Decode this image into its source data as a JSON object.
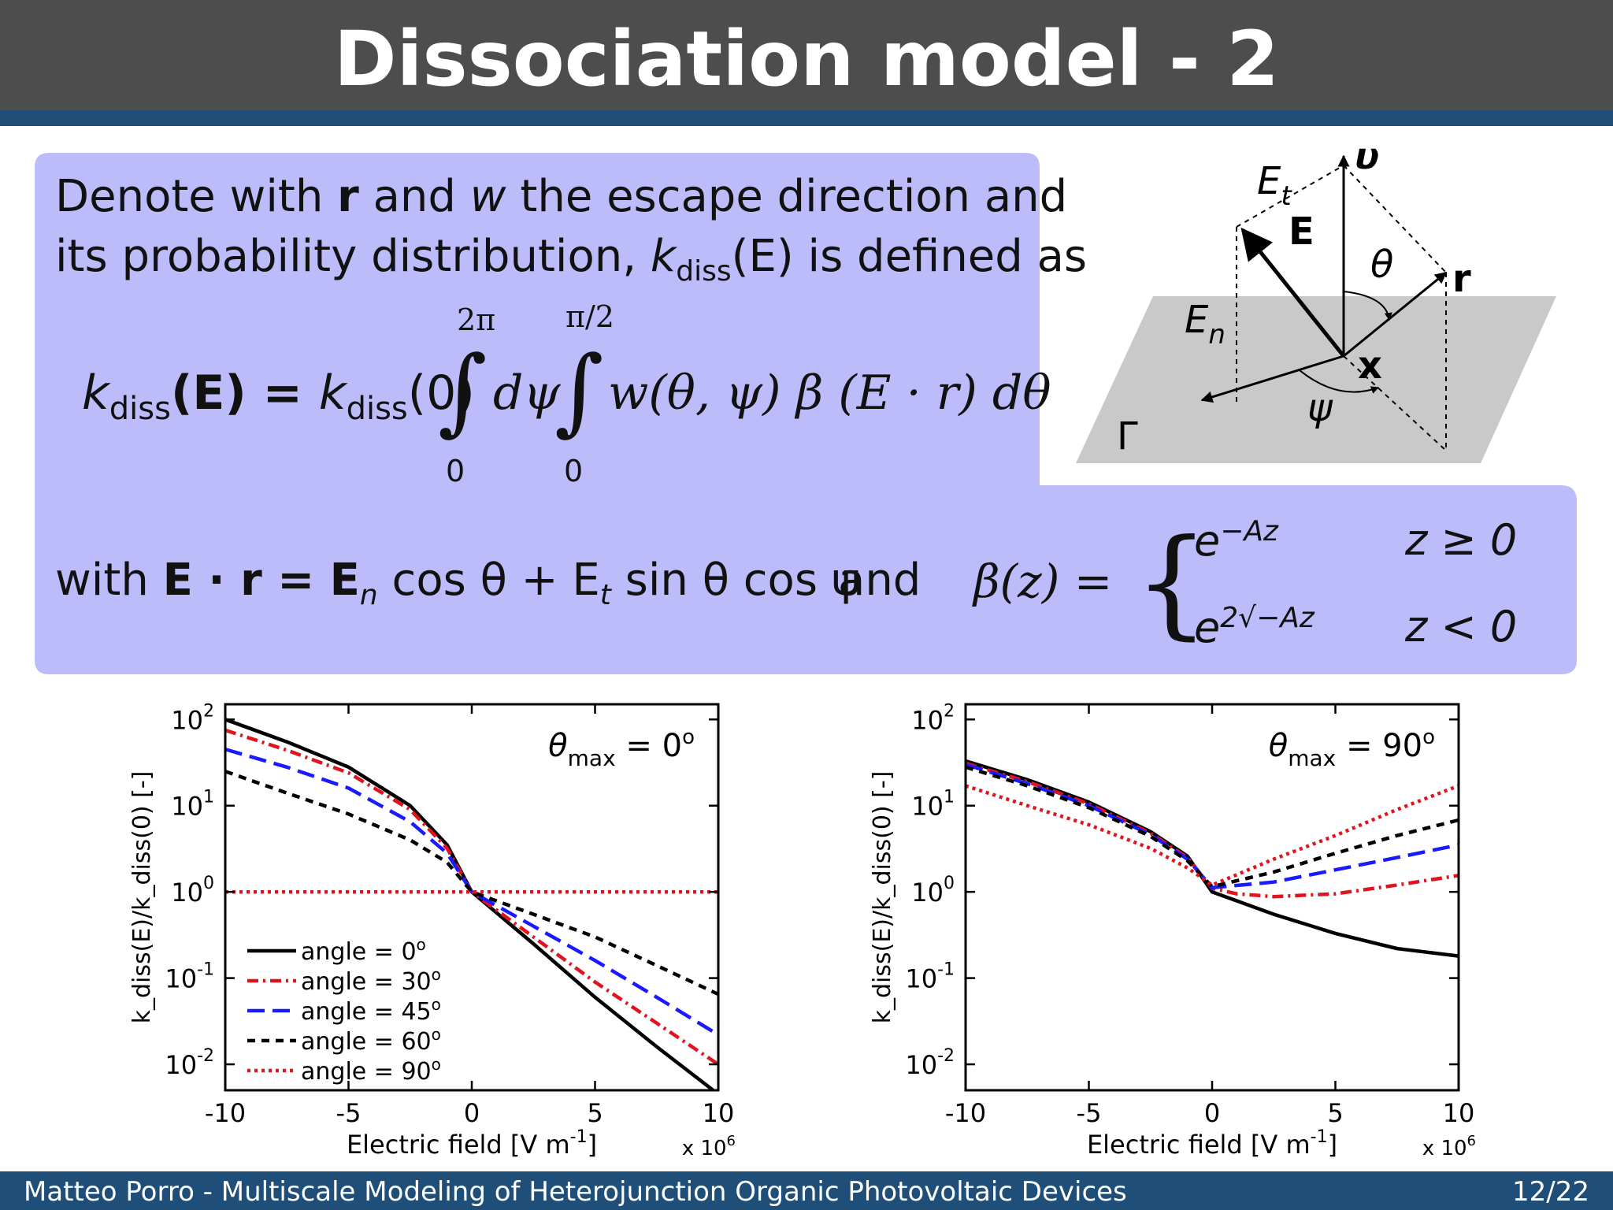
{
  "slide": {
    "title": "Dissociation model - 2",
    "footer_left": "Matteo Porro - Multiscale Modeling of Heterojunction Organic Photovoltaic Devices",
    "footer_right": "12/22"
  },
  "intro": {
    "line1_a": "Denote with ",
    "line1_r": "r",
    "line1_b": " and ",
    "line1_w": "w",
    "line1_c": " the escape direction and",
    "line2_a": "its probability distribution, ",
    "line2_k": "k",
    "line2_sub": "diss",
    "line2_b": "(E) is defined as"
  },
  "equation1": {
    "lhs_k": "k",
    "lhs_sub": "diss",
    "lhs_arg": "(E) = ",
    "rhs_k": "k",
    "rhs_sub": "diss",
    "rhs_arg": "(0)",
    "int1_upper": "2π",
    "int1_lower": "0",
    "int1_body": "dψ",
    "int2_upper": "π/2",
    "int2_lower": "0",
    "int2_body": "w(θ, ψ)  β (E · r) dθ"
  },
  "equation2": {
    "with": "with ",
    "er": "E · r = E",
    "n": "n",
    "mid": " cos θ + E",
    "t": "t",
    "end": " sin θ cos ψ",
    "and": "and",
    "beta": "β(z) =",
    "case1_expr": "e",
    "case1_sup": "−Az",
    "case1_cond": "z ≥ 0",
    "case2_expr": "e",
    "case2_sup": "2√−Az",
    "case2_cond": "z < 0"
  },
  "diagram": {
    "label_Et": "E",
    "label_Et_sub": "t",
    "label_v": "υ",
    "label_E": "E",
    "label_theta": "θ",
    "label_r": "r",
    "label_En": "E",
    "label_En_sub": "n",
    "label_x": "x",
    "label_psi": "ψ",
    "label_Gamma": "Γ"
  },
  "chart_data": [
    {
      "type": "line",
      "annotation_main": "θ",
      "annotation_sub": "max",
      "annotation_val": " = 0",
      "annotation_deg": "o",
      "xlabel": "Electric field [V m",
      "xlabel_sup": "-1",
      "xlabel_end": "]",
      "x_multiplier": "x 10",
      "x_multiplier_sup": "6",
      "ylabel": "k_diss(E)/k_diss(0) [-]",
      "xlim": [
        -10,
        10
      ],
      "ylim": [
        0.005,
        150
      ],
      "yscale": "log",
      "x_ticks": [
        "-10",
        "-5",
        "0",
        "5",
        "10"
      ],
      "y_ticks": [
        {
          "base": "10",
          "exp": "2",
          "value": 100
        },
        {
          "base": "10",
          "exp": "1",
          "value": 10
        },
        {
          "base": "10",
          "exp": "0",
          "value": 1
        },
        {
          "base": "10",
          "exp": "-1",
          "value": 0.1
        },
        {
          "base": "10",
          "exp": "-2",
          "value": 0.01
        }
      ],
      "legend_position": "lower-left",
      "series": [
        {
          "name": "angle = 0",
          "color": "#000000",
          "dash": "solid",
          "x": [
            -10,
            -7.5,
            -5,
            -2.5,
            -1,
            0,
            2.5,
            5,
            7.5,
            10
          ],
          "y": [
            100,
            55,
            28,
            10,
            3.5,
            1,
            0.25,
            0.06,
            0.016,
            0.0045
          ]
        },
        {
          "name": "angle = 30",
          "color": "#e0141e",
          "dash": "dashdot",
          "x": [
            -10,
            -7.5,
            -5,
            -2.5,
            -1,
            0,
            2.5,
            5,
            7.5,
            10
          ],
          "y": [
            75,
            44,
            24,
            9,
            3.2,
            1,
            0.3,
            0.09,
            0.03,
            0.01
          ]
        },
        {
          "name": "angle = 45",
          "color": "#1a1aff",
          "dash": "dashed",
          "x": [
            -10,
            -7.5,
            -5,
            -2.5,
            -1,
            0,
            2.5,
            5,
            7.5,
            10
          ],
          "y": [
            45,
            28,
            16,
            6.5,
            2.8,
            1,
            0.4,
            0.16,
            0.06,
            0.022
          ]
        },
        {
          "name": "angle = 60",
          "color": "#000000",
          "dash": "dotted-dash",
          "x": [
            -10,
            -7.5,
            -5,
            -2.5,
            -1,
            0,
            2.5,
            5,
            7.5,
            10
          ],
          "y": [
            25,
            14,
            8,
            4,
            2.2,
            1,
            0.55,
            0.3,
            0.14,
            0.065
          ]
        },
        {
          "name": "angle = 90",
          "color": "#e0141e",
          "dash": "dotted",
          "x": [
            -10,
            10
          ],
          "y": [
            1,
            1
          ]
        }
      ]
    },
    {
      "type": "line",
      "annotation_main": "θ",
      "annotation_sub": "max",
      "annotation_val": " = 90",
      "annotation_deg": "o",
      "xlabel": "Electric field [V m",
      "xlabel_sup": "-1",
      "xlabel_end": "]",
      "x_multiplier": "x 10",
      "x_multiplier_sup": "6",
      "ylabel": "k_diss(E)/k_diss(0) [-]",
      "xlim": [
        -10,
        10
      ],
      "ylim": [
        0.005,
        150
      ],
      "yscale": "log",
      "x_ticks": [
        "-10",
        "-5",
        "0",
        "5",
        "10"
      ],
      "y_ticks": [
        {
          "base": "10",
          "exp": "2",
          "value": 100
        },
        {
          "base": "10",
          "exp": "1",
          "value": 10
        },
        {
          "base": "10",
          "exp": "0",
          "value": 1
        },
        {
          "base": "10",
          "exp": "-1",
          "value": 0.1
        },
        {
          "base": "10",
          "exp": "-2",
          "value": 0.01
        }
      ],
      "series": [
        {
          "color": "#000000",
          "dash": "solid",
          "x": [
            -10,
            -7.5,
            -5,
            -2.5,
            -1,
            0,
            2.5,
            5,
            7.5,
            10
          ],
          "y": [
            33,
            20,
            11,
            5,
            2.6,
            1,
            0.55,
            0.33,
            0.22,
            0.18
          ]
        },
        {
          "color": "#e0141e",
          "dash": "dashdot",
          "x": [
            -10,
            -7.5,
            -5,
            -2.5,
            -1,
            0,
            1,
            2.5,
            5,
            7.5,
            10
          ],
          "y": [
            31,
            19,
            10.5,
            4.8,
            2.5,
            1.1,
            0.95,
            0.88,
            0.95,
            1.2,
            1.55
          ]
        },
        {
          "color": "#1a1aff",
          "dash": "dashed",
          "x": [
            -10,
            -7.5,
            -5,
            -2.5,
            -1,
            0,
            2.5,
            5,
            7.5,
            10
          ],
          "y": [
            30,
            18,
            10,
            4.6,
            2.4,
            1.12,
            1.3,
            1.8,
            2.5,
            3.5
          ]
        },
        {
          "color": "#000000",
          "dash": "dotted-dash",
          "x": [
            -10,
            -7.5,
            -5,
            -2.5,
            -1,
            0,
            2.5,
            5,
            7.5,
            10
          ],
          "y": [
            28,
            17,
            9.5,
            4.4,
            2.3,
            1.15,
            1.7,
            2.8,
            4.5,
            6.8
          ]
        },
        {
          "color": "#e0141e",
          "dash": "dotted",
          "x": [
            -10,
            -7.5,
            -5,
            -2.5,
            -1,
            0,
            2.5,
            5,
            7.5,
            10
          ],
          "y": [
            17,
            10,
            6,
            3.2,
            1.9,
            1.2,
            2.4,
            4.5,
            9,
            17
          ]
        }
      ]
    }
  ]
}
